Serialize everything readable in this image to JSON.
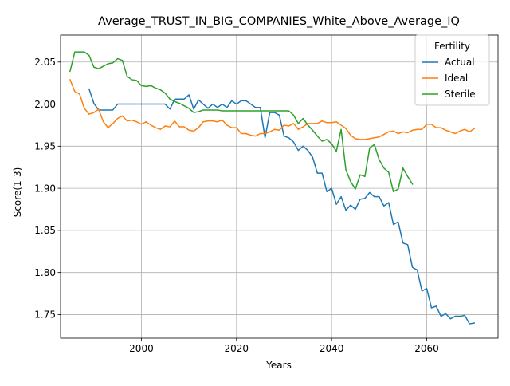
{
  "chart_data": {
    "type": "line",
    "title": "Average_TRUST_IN_BIG_COMPANIES_White_Above_Average_IQ",
    "xlabel": "Years",
    "ylabel": "Score(1-3)",
    "xlim": [
      1983,
      2075
    ],
    "ylim": [
      1.722,
      2.082
    ],
    "xticks": [
      2000,
      2020,
      2040,
      2060
    ],
    "yticks": [
      1.75,
      1.8,
      1.85,
      1.9,
      1.95,
      2.0,
      2.05
    ],
    "ytick_labels": [
      "1.75",
      "1.80",
      "1.85",
      "1.90",
      "1.95",
      "2.00",
      "2.05"
    ],
    "grid": true,
    "legend": {
      "title": "Fertility",
      "placement": "top-right"
    },
    "series": [
      {
        "name": "Actual",
        "color": "#1f77b4",
        "x": [
          1989,
          1990,
          1991,
          1992,
          1993,
          1994,
          1995,
          1996,
          1997,
          1998,
          1999,
          2000,
          2001,
          2002,
          2003,
          2004,
          2005,
          2006,
          2007,
          2008,
          2009,
          2010,
          2011,
          2012,
          2013,
          2014,
          2015,
          2016,
          2017,
          2018,
          2019,
          2020,
          2021,
          2022,
          2023,
          2024,
          2025,
          2026,
          2027,
          2028,
          2029,
          2030,
          2031,
          2032,
          2033,
          2034,
          2035,
          2036,
          2037,
          2038,
          2039,
          2040,
          2041,
          2042,
          2043,
          2044,
          2045,
          2046,
          2047,
          2048,
          2049,
          2050,
          2051,
          2052,
          2053,
          2054,
          2055,
          2056,
          2057,
          2058,
          2059,
          2060,
          2061,
          2062,
          2063,
          2064,
          2065,
          2066,
          2067,
          2068,
          2069,
          2070
        ],
        "y": [
          2.018,
          2.001,
          1.993,
          1.993,
          1.993,
          1.993,
          2.0,
          2.0,
          2.0,
          2.0,
          2.0,
          2.0,
          2.0,
          2.0,
          2.0,
          2.0,
          2.0,
          1.994,
          2.006,
          2.006,
          2.006,
          2.011,
          1.994,
          2.005,
          2.0,
          1.995,
          2.0,
          1.996,
          2.0,
          1.996,
          2.004,
          2.0,
          2.004,
          2.004,
          2.0,
          1.996,
          1.996,
          1.96,
          1.99,
          1.99,
          1.987,
          1.962,
          1.96,
          1.955,
          1.945,
          1.95,
          1.945,
          1.937,
          1.918,
          1.918,
          1.896,
          1.9,
          1.881,
          1.89,
          1.874,
          1.88,
          1.875,
          1.887,
          1.888,
          1.895,
          1.89,
          1.89,
          1.879,
          1.883,
          1.857,
          1.86,
          1.835,
          1.833,
          1.806,
          1.803,
          1.778,
          1.781,
          1.758,
          1.76,
          1.748,
          1.751,
          1.745,
          1.748,
          1.748,
          1.749,
          1.739,
          1.74
        ]
      },
      {
        "name": "Ideal",
        "color": "#ff7f0e",
        "x": [
          1985,
          1986,
          1987,
          1988,
          1989,
          1990,
          1991,
          1992,
          1993,
          1994,
          1995,
          1996,
          1997,
          1998,
          1999,
          2000,
          2001,
          2002,
          2003,
          2004,
          2005,
          2006,
          2007,
          2008,
          2009,
          2010,
          2011,
          2012,
          2013,
          2014,
          2015,
          2016,
          2017,
          2018,
          2019,
          2020,
          2021,
          2022,
          2023,
          2024,
          2025,
          2026,
          2027,
          2028,
          2029,
          2030,
          2031,
          2032,
          2033,
          2034,
          2035,
          2036,
          2037,
          2038,
          2039,
          2040,
          2041,
          2042,
          2043,
          2044,
          2045,
          2046,
          2047,
          2048,
          2049,
          2050,
          2051,
          2052,
          2053,
          2054,
          2055,
          2056,
          2057,
          2058,
          2059,
          2060,
          2061,
          2062,
          2063,
          2064,
          2065,
          2066,
          2067,
          2068,
          2069,
          2070
        ],
        "y": [
          2.029,
          2.015,
          2.012,
          1.995,
          1.988,
          1.99,
          1.994,
          1.979,
          1.972,
          1.977,
          1.983,
          1.986,
          1.98,
          1.981,
          1.979,
          1.976,
          1.979,
          1.975,
          1.972,
          1.97,
          1.974,
          1.973,
          1.98,
          1.973,
          1.973,
          1.969,
          1.968,
          1.972,
          1.979,
          1.98,
          1.98,
          1.979,
          1.981,
          1.975,
          1.972,
          1.972,
          1.965,
          1.965,
          1.963,
          1.962,
          1.965,
          1.965,
          1.967,
          1.97,
          1.969,
          1.975,
          1.974,
          1.977,
          1.97,
          1.973,
          1.977,
          1.977,
          1.977,
          1.98,
          1.978,
          1.978,
          1.979,
          1.975,
          1.971,
          1.963,
          1.959,
          1.958,
          1.958,
          1.959,
          1.96,
          1.961,
          1.964,
          1.967,
          1.968,
          1.965,
          1.967,
          1.966,
          1.969,
          1.97,
          1.97,
          1.976,
          1.976,
          1.972,
          1.972,
          1.969,
          1.967,
          1.965,
          1.968,
          1.97,
          1.967,
          1.971
        ]
      },
      {
        "name": "Sterile",
        "color": "#2ca02c",
        "x": [
          1985,
          1986,
          1987,
          1988,
          1989,
          1990,
          1991,
          1992,
          1993,
          1994,
          1995,
          1996,
          1997,
          1998,
          1999,
          2000,
          2001,
          2002,
          2003,
          2004,
          2005,
          2006,
          2007,
          2008,
          2009,
          2010,
          2011,
          2012,
          2013,
          2014,
          2015,
          2016,
          2017,
          2018,
          2019,
          2020,
          2021,
          2022,
          2023,
          2024,
          2025,
          2026,
          2027,
          2028,
          2029,
          2030,
          2031,
          2032,
          2033,
          2034,
          2035,
          2036,
          2037,
          2038,
          2039,
          2040,
          2041,
          2042,
          2043,
          2044,
          2045,
          2046,
          2047,
          2048,
          2049,
          2050,
          2051,
          2052,
          2053,
          2054,
          2055,
          2056,
          2057
        ],
        "y": [
          2.039,
          2.062,
          2.062,
          2.062,
          2.058,
          2.044,
          2.042,
          2.045,
          2.048,
          2.049,
          2.054,
          2.052,
          2.033,
          2.029,
          2.028,
          2.022,
          2.021,
          2.022,
          2.019,
          2.017,
          2.013,
          2.006,
          2.003,
          2.001,
          1.998,
          1.995,
          1.99,
          1.991,
          1.993,
          1.993,
          1.993,
          1.993,
          1.992,
          1.992,
          1.992,
          1.992,
          1.992,
          1.992,
          1.992,
          1.992,
          1.992,
          1.992,
          1.992,
          1.992,
          1.992,
          1.992,
          1.992,
          1.987,
          1.977,
          1.983,
          1.975,
          1.969,
          1.962,
          1.956,
          1.958,
          1.953,
          1.944,
          1.97,
          1.922,
          1.908,
          1.899,
          1.916,
          1.914,
          1.948,
          1.952,
          1.934,
          1.924,
          1.919,
          1.896,
          1.899,
          1.924,
          1.914,
          1.905
        ]
      }
    ]
  }
}
